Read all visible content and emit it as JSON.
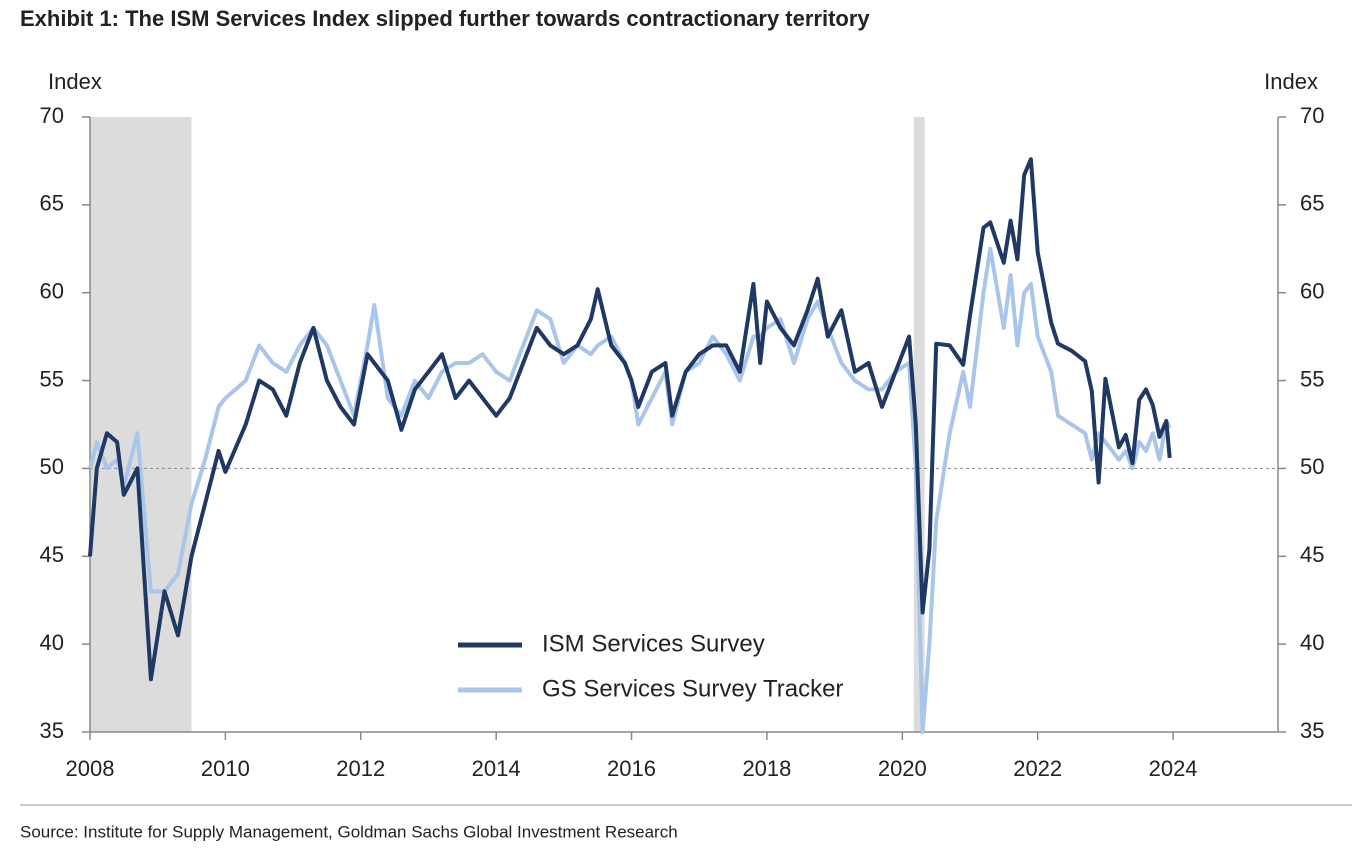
{
  "chart_data": {
    "type": "line",
    "title": "Exhibit 1: The ISM Services Index slipped further towards contractionary territory",
    "y_label": "Index",
    "y2_label": "Index",
    "source": "Source: Institute for Supply Management, Goldman Sachs Global Investment Research",
    "xlim": [
      2008,
      2025.55
    ],
    "xticks": [
      2008,
      2010,
      2012,
      2014,
      2016,
      2018,
      2020,
      2022,
      2024
    ],
    "ylim": [
      35,
      70
    ],
    "yticks": [
      35,
      40,
      45,
      50,
      55,
      60,
      65,
      70
    ],
    "y2lim": [
      35,
      70
    ],
    "y2ticks": [
      35,
      40,
      45,
      50,
      55,
      60,
      65,
      70
    ],
    "reference_line": 50,
    "recessions": [
      [
        2008.0,
        2009.5
      ],
      [
        2020.17,
        2020.33
      ]
    ],
    "legend": "bottom-center",
    "x": [
      2008.0,
      2008.1,
      2008.25,
      2008.4,
      2008.5,
      2008.7,
      2008.9,
      2009.1,
      2009.3,
      2009.5,
      2009.7,
      2009.9,
      2010.0,
      2010.3,
      2010.5,
      2010.7,
      2010.9,
      2011.1,
      2011.3,
      2011.5,
      2011.7,
      2011.9,
      2012.1,
      2012.2,
      2012.4,
      2012.6,
      2012.8,
      2013.0,
      2013.2,
      2013.4,
      2013.6,
      2013.8,
      2014.0,
      2014.2,
      2014.4,
      2014.6,
      2014.8,
      2015.0,
      2015.2,
      2015.4,
      2015.5,
      2015.7,
      2015.9,
      2016.0,
      2016.1,
      2016.3,
      2016.5,
      2016.6,
      2016.8,
      2017.0,
      2017.2,
      2017.4,
      2017.6,
      2017.8,
      2017.9,
      2018.0,
      2018.2,
      2018.4,
      2018.6,
      2018.75,
      2018.9,
      2019.1,
      2019.3,
      2019.5,
      2019.7,
      2019.9,
      2020.1,
      2020.2,
      2020.3,
      2020.4,
      2020.5,
      2020.7,
      2020.9,
      2021.0,
      2021.2,
      2021.3,
      2021.5,
      2021.6,
      2021.7,
      2021.8,
      2021.9,
      2022.0,
      2022.2,
      2022.3,
      2022.5,
      2022.7,
      2022.8,
      2022.9,
      2023.0,
      2023.2,
      2023.3,
      2023.4,
      2023.5,
      2023.6,
      2023.7,
      2023.8,
      2023.9,
      2023.95
    ],
    "series": [
      {
        "name": "ISM Services Survey",
        "color": "#1f3864",
        "values": [
          45,
          50,
          52,
          51.5,
          48.5,
          50,
          38,
          43,
          40.5,
          45,
          48,
          51,
          49.8,
          52.5,
          55,
          54.5,
          53,
          56,
          58,
          55,
          53.5,
          52.5,
          56.5,
          56,
          55,
          52.2,
          54.5,
          55.5,
          56.5,
          54,
          55,
          54,
          53,
          54,
          56,
          58,
          57,
          56.5,
          57,
          58.5,
          60.2,
          57,
          56,
          55,
          53.5,
          55.5,
          56,
          53,
          55.5,
          56.5,
          57,
          57,
          55.5,
          60.5,
          56,
          59.5,
          58,
          57,
          59,
          60.8,
          57.5,
          59,
          55.5,
          56,
          53.5,
          55.5,
          57.5,
          52.5,
          41.8,
          45.4,
          57.1,
          57,
          55.9,
          58.7,
          63.7,
          64,
          61.7,
          64.1,
          61.9,
          66.7,
          67.6,
          62.3,
          58.3,
          57.1,
          56.7,
          56.1,
          54.4,
          49.2,
          55.1,
          51.2,
          51.9,
          50.3,
          53.9,
          54.5,
          53.6,
          51.8,
          52.7,
          50.6
        ]
      },
      {
        "name": "GS Services Survey Tracker",
        "color": "#a9c5ea",
        "values": [
          50,
          51.5,
          50,
          50.5,
          49,
          52,
          43,
          43,
          44,
          48,
          50.5,
          53.5,
          54,
          55,
          57,
          56,
          55.5,
          57,
          58,
          57,
          55,
          53,
          57,
          59.3,
          54,
          53,
          55,
          54,
          55.5,
          56,
          56,
          56.5,
          55.5,
          55,
          57,
          59,
          58.5,
          56,
          57,
          56.5,
          57,
          57.5,
          56,
          55,
          52.5,
          54,
          55.5,
          52.5,
          55.5,
          56,
          57.5,
          56.5,
          55,
          57.5,
          57.5,
          58,
          58.5,
          56,
          58.5,
          59.5,
          58,
          56,
          55,
          54.5,
          54.5,
          55.5,
          56,
          50,
          35,
          40,
          47,
          52,
          55.5,
          53.5,
          60,
          62.5,
          58,
          61,
          57,
          60,
          60.5,
          57.5,
          55.5,
          53,
          52.5,
          52,
          50.5,
          52,
          51.5,
          50.5,
          51,
          50,
          51.5,
          51,
          52,
          50.5,
          52.7,
          52.3
        ]
      }
    ]
  }
}
